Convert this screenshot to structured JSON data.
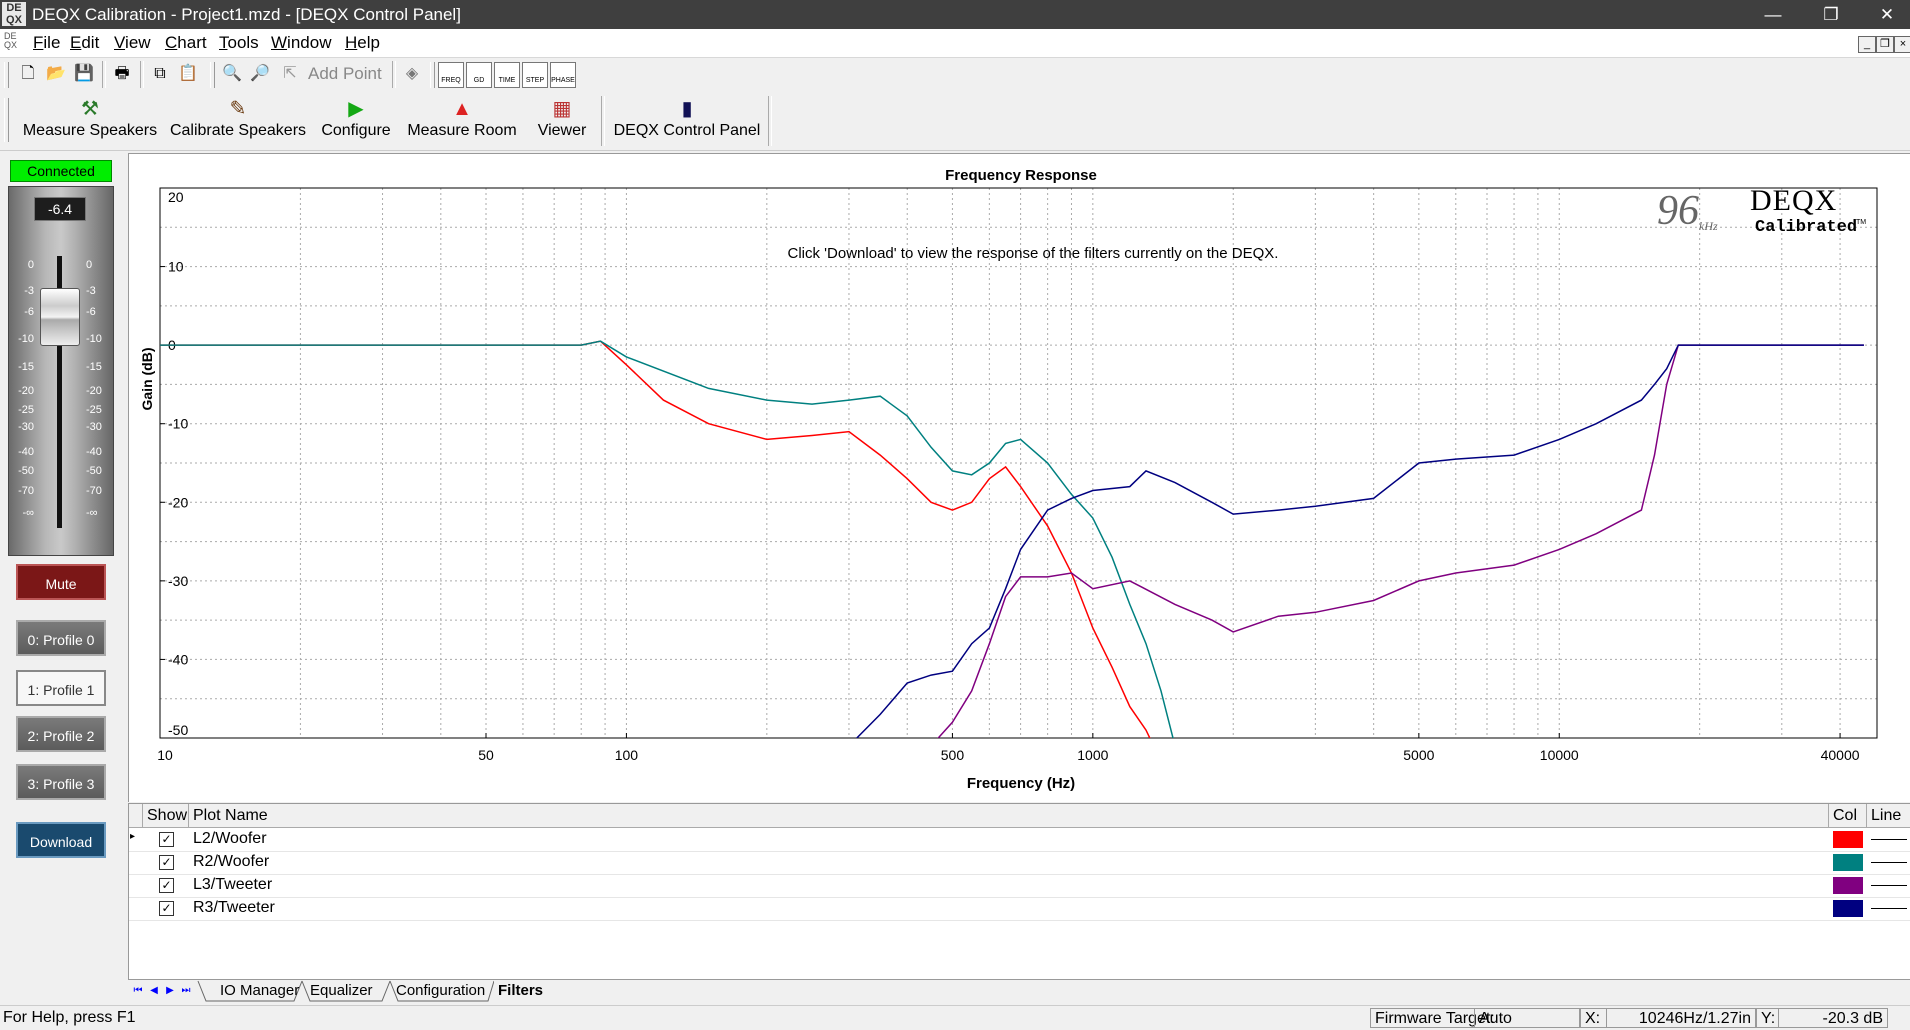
{
  "window": {
    "title": "DEQX Calibration - Project1.mzd - [DEQX Control Panel]",
    "app_icon_text": "DE QX",
    "controls": {
      "minimize": "—",
      "restore": "❐",
      "close": "✕"
    },
    "mdi_controls": {
      "minimize": "_",
      "restore": "❐",
      "close": "×"
    }
  },
  "menu": [
    {
      "key": "F",
      "rest": "ile"
    },
    {
      "key": "E",
      "rest": "dit"
    },
    {
      "key": "V",
      "rest": "iew"
    },
    {
      "key": "C",
      "rest": "hart"
    },
    {
      "key": "T",
      "rest": "ools"
    },
    {
      "key": "W",
      "rest": "indow"
    },
    {
      "key": "H",
      "rest": "elp"
    }
  ],
  "toolbar": {
    "add_point": "Add Point",
    "view_buttons": [
      "FREQ",
      "GD",
      "TIME",
      "STEP",
      "PHASE"
    ]
  },
  "main_buttons": [
    "Measure Speakers",
    "Calibrate Speakers",
    "Configure",
    "Measure Room",
    "Viewer",
    "DEQX Control Panel"
  ],
  "control_panel": {
    "status": "Connected",
    "gain_value": "-6.4",
    "gain_level_db": -6.4,
    "fader_ticks": [
      "0",
      "-3",
      "-6",
      "-10",
      "-15",
      "-20",
      "-25",
      "-30",
      "-40",
      "-50",
      "-70",
      "-∞"
    ],
    "mute": "Mute",
    "profiles": [
      "0: Profile 0",
      "1: Profile 1",
      "2: Profile 2",
      "3: Profile 3"
    ],
    "active_profile": 1,
    "download": "Download"
  },
  "chart_data": {
    "type": "line",
    "title": "Frequency Response",
    "xlabel": "Frequency (Hz)",
    "ylabel": "Gain (dB)",
    "x_scale": "log",
    "xlim": [
      10,
      48000
    ],
    "ylim": [
      -50,
      20
    ],
    "x_ticks": [
      10,
      50,
      100,
      500,
      1000,
      5000,
      10000,
      40000
    ],
    "y_ticks": [
      20,
      10,
      0,
      -10,
      -20,
      -30,
      -40,
      -50
    ],
    "grid": true,
    "annotation": "Click 'Download' to view the response of the filters currently on the DEQX.",
    "logo": {
      "rate": "96",
      "unit": "kHz",
      "brand": "DEQX",
      "sub": "Calibrated",
      "tm": "TM"
    },
    "series": [
      {
        "name": "L2/Woofer",
        "color": "#ff0000",
        "x": [
          10,
          20,
          40,
          60,
          80,
          88,
          100,
          120,
          150,
          200,
          250,
          300,
          350,
          400,
          450,
          500,
          550,
          600,
          650,
          700,
          800,
          900,
          1000,
          1100,
          1200,
          1300,
          1350
        ],
        "y": [
          0,
          0,
          0,
          0,
          0,
          0.5,
          -2.5,
          -7,
          -10,
          -12,
          -11.5,
          -11,
          -14,
          -17,
          -20,
          -21,
          -20,
          -17,
          -15.5,
          -18,
          -23,
          -29,
          -36,
          -41,
          -46,
          -49,
          -51
        ]
      },
      {
        "name": "R2/Woofer",
        "color": "#008080",
        "x": [
          10,
          20,
          40,
          60,
          80,
          88,
          100,
          150,
          200,
          250,
          300,
          350,
          400,
          450,
          500,
          550,
          600,
          650,
          700,
          800,
          900,
          1000,
          1100,
          1200,
          1300,
          1400,
          1500
        ],
        "y": [
          0,
          0,
          0,
          0,
          0,
          0.5,
          -1.5,
          -5.5,
          -7,
          -7.5,
          -7,
          -6.5,
          -9,
          -13,
          -16,
          -16.5,
          -15,
          -12.5,
          -12,
          -15,
          -19,
          -22,
          -27,
          -33,
          -38,
          -44,
          -51
        ]
      },
      {
        "name": "L3/Tweeter",
        "color": "#800080",
        "x": [
          450,
          500,
          550,
          600,
          650,
          700,
          800,
          900,
          1000,
          1200,
          1500,
          1800,
          2000,
          2500,
          3000,
          4000,
          5000,
          6000,
          8000,
          10000,
          12000,
          15000,
          16000,
          17000,
          18000,
          20000,
          30000,
          45000
        ],
        "y": [
          -51,
          -48,
          -44,
          -38,
          -32,
          -29.5,
          -29.5,
          -29,
          -31,
          -30,
          -33,
          -35,
          -36.5,
          -34.5,
          -34,
          -32.5,
          -30,
          -29,
          -28,
          -26,
          -24,
          -21,
          -14,
          -5,
          0,
          0,
          0,
          0
        ]
      },
      {
        "name": "R3/Tweeter",
        "color": "#000080",
        "x": [
          300,
          350,
          400,
          450,
          500,
          550,
          600,
          650,
          700,
          800,
          900,
          1000,
          1200,
          1300,
          1500,
          1800,
          2000,
          2500,
          3000,
          4000,
          5000,
          6000,
          8000,
          10000,
          12000,
          15000,
          16000,
          17000,
          18000,
          20000,
          30000,
          45000
        ],
        "y": [
          -51,
          -47,
          -43,
          -42,
          -41.5,
          -38,
          -36,
          -31,
          -26,
          -21,
          -19.5,
          -18.5,
          -18,
          -16,
          -17.5,
          -20,
          -21.5,
          -21,
          -20.5,
          -19.5,
          -15,
          -14.5,
          -14,
          -12,
          -10,
          -7,
          -5,
          -3,
          0,
          0,
          0,
          0
        ]
      }
    ]
  },
  "plot_table": {
    "headers": [
      "Show",
      "Plot Name",
      "Col",
      "Line"
    ],
    "check_mark": "✓",
    "rows": [
      {
        "name": "L2/Woofer",
        "color": "#ff0000",
        "show": true
      },
      {
        "name": "R2/Woofer",
        "color": "#008080",
        "show": true
      },
      {
        "name": "L3/Tweeter",
        "color": "#800080",
        "show": true
      },
      {
        "name": "R3/Tweeter",
        "color": "#000080",
        "show": true
      }
    ]
  },
  "tabs": {
    "items": [
      "IO Manager",
      "Equalizer",
      "Configuration",
      "Filters"
    ],
    "active": "Filters"
  },
  "status_bar": {
    "help": "For Help, press F1",
    "firmware_label": "Firmware Target:",
    "firmware_value": "Auto",
    "x_label": "X:",
    "x_value": "10246Hz/1.27in",
    "y_label": "Y:",
    "y_value": "-20.3 dB"
  }
}
